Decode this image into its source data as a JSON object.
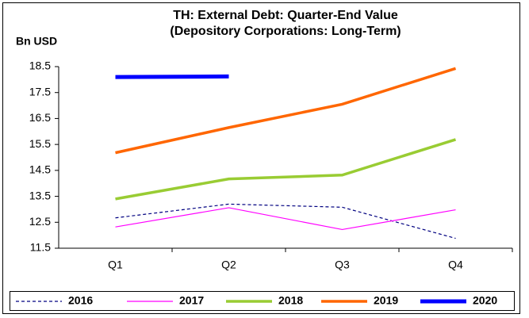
{
  "chart_data": {
    "type": "line",
    "title": "TH: External Debt: Quarter-End Value",
    "subtitle": "(Depository Corporations: Long-Term)",
    "ylabel": "Bn USD",
    "categories": [
      "Q1",
      "Q2",
      "Q3",
      "Q4"
    ],
    "series": [
      {
        "name": "2016",
        "color": "#000080",
        "width": 1.2,
        "dash": true,
        "values": [
          12.67,
          13.2,
          13.08,
          11.88
        ]
      },
      {
        "name": "2017",
        "color": "#ff00ff",
        "width": 1.2,
        "dash": false,
        "values": [
          12.32,
          13.06,
          12.22,
          12.98
        ]
      },
      {
        "name": "2018",
        "color": "#99cc33",
        "width": 3.5,
        "dash": false,
        "values": [
          13.4,
          14.17,
          14.32,
          15.69
        ]
      },
      {
        "name": "2019",
        "color": "#ff6600",
        "width": 3.5,
        "dash": false,
        "values": [
          15.18,
          16.15,
          17.05,
          18.43
        ]
      },
      {
        "name": "2020",
        "color": "#0000ff",
        "width": 5,
        "dash": false,
        "values": [
          18.1,
          18.12,
          null,
          null
        ]
      }
    ],
    "ylim": [
      11.5,
      18.5
    ],
    "yticks": [
      11.5,
      12.5,
      13.5,
      14.5,
      15.5,
      16.5,
      17.5,
      18.5
    ],
    "legend": "bottom"
  }
}
